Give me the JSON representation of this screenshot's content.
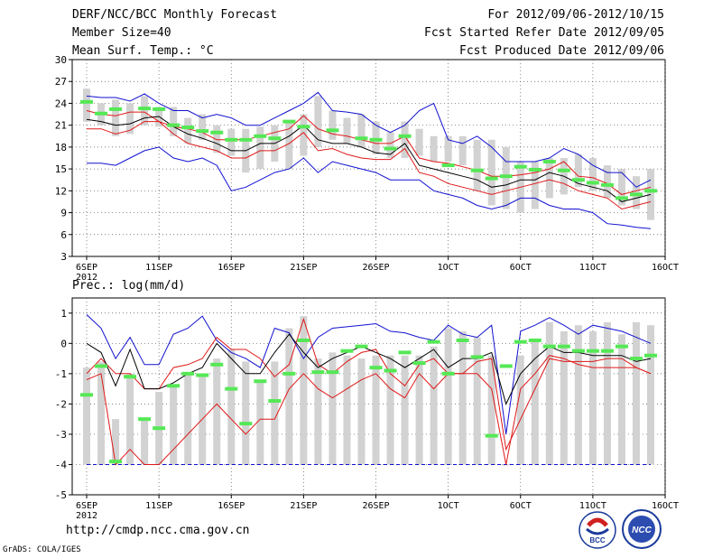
{
  "header": {
    "line1": "DERF/NCC/BCC Monthly Forecast",
    "line2": "Member Size=40",
    "line3": "Mean Surf. Temp.: °C",
    "right1": "For 2012/09/06-2012/10/15",
    "right2": "Fcst Started Refer Date 2012/09/05",
    "right3": "Fcst Produced Date 2012/09/06"
  },
  "panel2_title": "Prec.: log(mm/d)",
  "footer": {
    "url": "http://cmdp.ncc.cma.gov.cn",
    "credit": "GrADS: COLA/IGES"
  },
  "logos": {
    "bcc": "BCC",
    "ncc": "NCC"
  },
  "colors": {
    "box": "#d2d2d2",
    "obs": "#55e855",
    "mean": "#000000",
    "spread": "#e01818",
    "range": "#1010d0"
  },
  "chart_data": [
    {
      "type": "box-plume",
      "title": "Mean Surf. Temp.: °C",
      "x_labels": [
        "6SEP",
        "11SEP",
        "16SEP",
        "21SEP",
        "26SEP",
        "1OCT",
        "6OCT",
        "11OCT",
        "16OCT"
      ],
      "x_sublabel": "2012",
      "days": 40,
      "ylim": [
        3,
        30
      ],
      "yticks": [
        3,
        6,
        9,
        12,
        15,
        18,
        21,
        24,
        27,
        30
      ],
      "box_low": [
        21.5,
        21.0,
        19.5,
        19.8,
        21.0,
        20.8,
        19.5,
        18.5,
        19.0,
        17.2,
        16.8,
        14.5,
        15.0,
        16.0,
        15.0,
        16.8,
        18.0,
        19.0,
        18.5,
        18.0,
        17.0,
        16.5,
        16.5,
        16.8,
        16.0,
        16.0,
        15.5,
        12.0,
        10.0,
        9.5,
        9.0,
        9.5,
        11.0,
        11.5,
        12.5,
        12.0,
        11.0,
        10.0,
        9.5,
        8.0
      ],
      "box_high": [
        26.0,
        24.0,
        24.5,
        24.0,
        25.0,
        23.5,
        23.5,
        22.0,
        22.5,
        21.0,
        20.5,
        20.5,
        20.8,
        21.0,
        21.5,
        22.5,
        25.0,
        23.0,
        22.0,
        22.5,
        21.5,
        20.0,
        21.5,
        20.5,
        19.5,
        19.5,
        19.5,
        19.0,
        19.0,
        18.0,
        16.0,
        16.0,
        16.5,
        16.5,
        17.0,
        16.5,
        15.5,
        15.0,
        14.0,
        15.0
      ],
      "obs": [
        24.2,
        22.6,
        23.2,
        null,
        23.3,
        23.2,
        21.0,
        20.7,
        20.2,
        20.0,
        19.0,
        19.0,
        19.5,
        19.2,
        21.5,
        20.8,
        null,
        20.3,
        null,
        19.2,
        19.0,
        17.8,
        19.5,
        null,
        null,
        15.5,
        null,
        14.8,
        13.7,
        14.0,
        15.3,
        14.9,
        16.0,
        14.8,
        13.5,
        13.1,
        12.8,
        11.0,
        11.5,
        12.0
      ],
      "ens_max": [
        25.0,
        24.8,
        24.8,
        24.3,
        25.3,
        24.0,
        23.0,
        23.0,
        22.0,
        22.5,
        22.0,
        21.0,
        21.0,
        22.0,
        23.0,
        24.0,
        25.5,
        23.0,
        22.8,
        22.5,
        21.0,
        20.0,
        21.0,
        23.0,
        24.0,
        19.0,
        18.5,
        19.5,
        18.0,
        16.0,
        16.0,
        16.0,
        16.5,
        17.8,
        17.0,
        15.5,
        14.5,
        14.5,
        12.5,
        13.5
      ],
      "spread_high": [
        23.0,
        22.5,
        22.3,
        22.8,
        22.8,
        21.5,
        20.8,
        20.5,
        20.0,
        19.0,
        19.0,
        19.0,
        19.5,
        20.0,
        20.5,
        22.3,
        20.5,
        19.8,
        19.5,
        19.0,
        18.5,
        18.5,
        19.5,
        16.5,
        16.0,
        15.8,
        15.3,
        14.8,
        14.0,
        14.0,
        14.2,
        14.5,
        15.0,
        16.0,
        14.0,
        13.8,
        13.0,
        11.5,
        12.0,
        12.5
      ],
      "mean": [
        21.8,
        21.5,
        21.0,
        21.2,
        22.0,
        22.2,
        20.8,
        19.8,
        19.2,
        18.5,
        17.5,
        17.5,
        18.5,
        18.5,
        19.5,
        21.0,
        19.0,
        18.5,
        18.5,
        18.0,
        17.2,
        17.0,
        18.5,
        15.5,
        15.0,
        14.5,
        14.0,
        13.5,
        12.5,
        12.8,
        13.5,
        13.5,
        14.5,
        14.0,
        13.0,
        12.5,
        12.0,
        10.5,
        11.0,
        11.5
      ],
      "spread_low": [
        20.5,
        20.5,
        19.8,
        20.3,
        21.5,
        21.5,
        19.8,
        18.5,
        18.0,
        17.5,
        16.5,
        16.5,
        17.5,
        17.5,
        18.5,
        20.0,
        17.5,
        17.8,
        17.0,
        16.5,
        16.3,
        16.3,
        17.8,
        14.5,
        14.0,
        13.0,
        12.5,
        12.0,
        11.5,
        12.0,
        12.5,
        13.0,
        13.5,
        13.0,
        12.0,
        11.5,
        11.0,
        9.5,
        10.0,
        10.5
      ],
      "ens_min": [
        15.8,
        15.8,
        15.5,
        16.5,
        17.5,
        18.0,
        16.5,
        16.0,
        16.5,
        15.5,
        12.0,
        12.5,
        13.5,
        14.5,
        15.0,
        16.5,
        14.5,
        16.0,
        15.5,
        15.0,
        14.5,
        13.5,
        13.5,
        13.5,
        12.0,
        11.5,
        11.0,
        10.0,
        9.5,
        10.0,
        11.0,
        11.0,
        10.0,
        9.5,
        9.5,
        9.0,
        7.5,
        7.3,
        7.0,
        6.8
      ]
    },
    {
      "type": "box-plume",
      "title": "Prec.: log(mm/d)",
      "x_labels": [
        "6SEP",
        "11SEP",
        "16SEP",
        "21SEP",
        "26SEP",
        "1OCT",
        "6OCT",
        "11OCT",
        "16OCT"
      ],
      "x_sublabel": "2012",
      "days": 40,
      "ylim": [
        -5,
        1.5
      ],
      "yticks": [
        -5,
        -4,
        -3,
        -2,
        -1,
        0,
        1
      ],
      "box_low": [
        -4,
        -4,
        -4,
        -4,
        -4,
        -4,
        -4,
        -4,
        -4,
        -4,
        -4,
        -4,
        -4,
        -4,
        -4,
        -4,
        -4,
        -4,
        -4,
        -4,
        -4,
        -4,
        -4,
        -4,
        -4,
        -4,
        -4,
        -4,
        -4,
        -4,
        -4,
        -4,
        -4,
        -4,
        -4,
        -4,
        -4,
        -4,
        -4,
        -4
      ],
      "box_high": [
        -0.8,
        -0.6,
        -2.5,
        -1.0,
        -2.5,
        -1.6,
        -1.4,
        -1.0,
        -1.0,
        -0.5,
        -0.2,
        -0.6,
        -1.2,
        -0.6,
        0.5,
        0.9,
        -0.5,
        -0.3,
        -0.4,
        -0.5,
        -0.4,
        -0.4,
        -0.4,
        -0.4,
        -0.1,
        0.5,
        0.4,
        0.2,
        -0.4,
        -4.0,
        -0.4,
        0.1,
        0.7,
        0.4,
        0.6,
        0.4,
        0.7,
        0.3,
        0.7,
        0.6
      ],
      "obs": [
        -1.7,
        -0.75,
        -3.9,
        -1.1,
        -2.5,
        -2.8,
        -1.4,
        -1.0,
        -1.05,
        -0.7,
        -1.5,
        -2.65,
        -1.25,
        -1.9,
        -1.0,
        0.1,
        -0.95,
        -0.95,
        -0.25,
        -0.1,
        -0.8,
        -0.9,
        -0.3,
        -0.65,
        0.05,
        -1.0,
        0.1,
        -0.45,
        -3.05,
        -0.75,
        0.05,
        0.1,
        -0.1,
        -0.1,
        -0.25,
        -0.25,
        -0.25,
        -0.1,
        -0.5,
        -0.4
      ],
      "ens_max": [
        0.95,
        0.5,
        -0.5,
        0.2,
        -0.7,
        -0.7,
        0.3,
        0.5,
        0.9,
        0.1,
        -0.3,
        -0.5,
        -0.8,
        0.5,
        0.35,
        -0.5,
        0.2,
        0.5,
        0.55,
        0.6,
        0.65,
        0.4,
        0.35,
        0.2,
        0.1,
        0.6,
        0.3,
        0.2,
        0.6,
        -3.0,
        0.4,
        0.6,
        0.85,
        0.6,
        0.3,
        0.6,
        0.5,
        0.4,
        0.2,
        0.0
      ],
      "spread_high": [
        -1.0,
        -0.5,
        -1.0,
        -1.0,
        -1.5,
        -1.5,
        -0.8,
        -0.7,
        -0.5,
        0.2,
        -0.2,
        -0.2,
        -0.5,
        -1.1,
        -0.7,
        0.8,
        -0.7,
        -1.0,
        -0.6,
        -0.3,
        -0.2,
        -1.0,
        -1.4,
        -0.7,
        -0.5,
        -1.0,
        -1.0,
        -0.6,
        -0.5,
        -3.5,
        -2.5,
        -1.5,
        -0.5,
        -0.6,
        -0.6,
        -0.6,
        -0.5,
        -0.5,
        -0.8,
        -1.0
      ],
      "mean": [
        0.0,
        -0.3,
        -1.4,
        -0.2,
        -1.5,
        -1.5,
        -1.3,
        -1.0,
        -0.8,
        0.0,
        -0.5,
        -1.0,
        -1.0,
        -0.3,
        0.3,
        -0.3,
        -0.8,
        -0.5,
        -0.3,
        -0.1,
        -0.3,
        -0.5,
        -0.8,
        -0.5,
        -0.2,
        -0.8,
        -0.5,
        -0.5,
        -0.3,
        -2.0,
        -1.0,
        -0.5,
        -0.1,
        -0.3,
        -0.3,
        -0.4,
        -0.4,
        -0.4,
        -0.6,
        -0.5
      ],
      "spread_low": [
        -1.2,
        -1.0,
        -4.0,
        -3.5,
        -4.0,
        -4.0,
        -3.5,
        -3.0,
        -2.5,
        -2.0,
        -2.5,
        -3.0,
        -2.5,
        -2.5,
        -1.5,
        -1.0,
        -1.5,
        -1.8,
        -1.5,
        -1.2,
        -1.0,
        -1.5,
        -1.8,
        -1.0,
        -1.5,
        -1.0,
        -1.0,
        -1.0,
        -1.5,
        -4.0,
        -1.5,
        -1.0,
        -0.4,
        -0.5,
        -0.7,
        -0.8,
        -0.8,
        -0.8,
        -0.8,
        -1.0
      ],
      "ens_min": [
        -4,
        -4,
        -4,
        -4,
        -4,
        -4,
        -4,
        -4,
        -4,
        -4,
        -4,
        -4,
        -4,
        -4,
        -4,
        -4,
        -4,
        -4,
        -4,
        -4,
        -4,
        -4,
        -4,
        -4,
        -4,
        -4,
        -4,
        -4,
        -4,
        -4,
        -4,
        -4,
        -4,
        -4,
        -4,
        -4,
        -4,
        -4,
        -4,
        -4
      ]
    }
  ]
}
